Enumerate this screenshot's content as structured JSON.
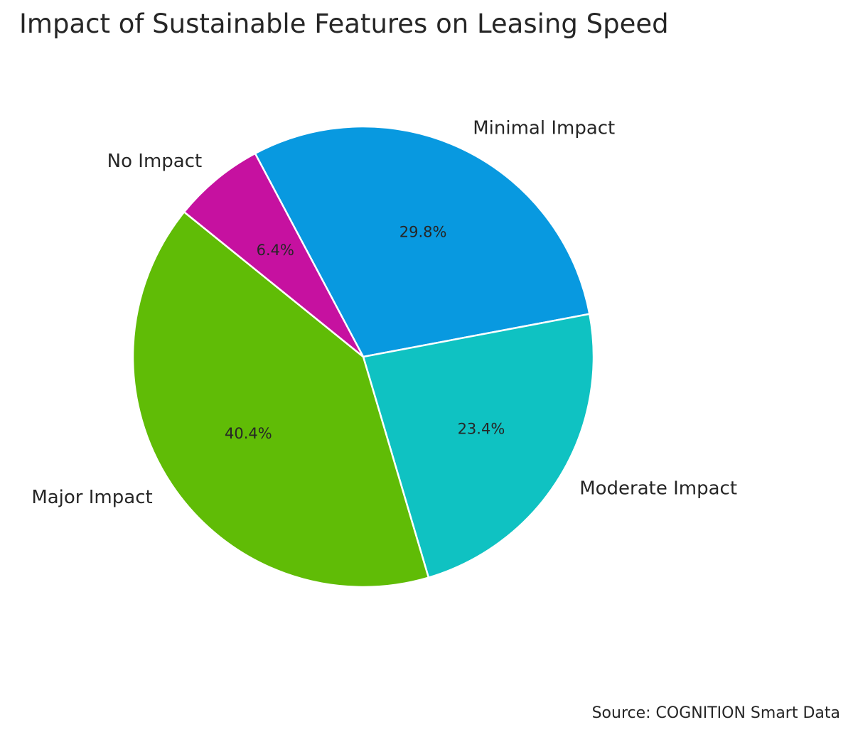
{
  "chart_data": {
    "type": "pie",
    "title": "Impact of Sustainable Features on Leasing Speed",
    "source": "Source: COGNITION Smart Data",
    "slices": [
      {
        "label": "Minimal Impact",
        "value": 29.8,
        "pct_label": "29.8%",
        "color": "#0899e0"
      },
      {
        "label": "Moderate Impact",
        "value": 23.4,
        "pct_label": "23.4%",
        "color": "#0fc2c2"
      },
      {
        "label": "Major Impact",
        "value": 40.4,
        "pct_label": "40.4%",
        "color": "#60bc06"
      },
      {
        "label": "No Impact",
        "value": 6.4,
        "pct_label": "6.4%",
        "color": "#c611a0"
      }
    ],
    "start_angle_deg": 118,
    "direction": "clockwise"
  }
}
